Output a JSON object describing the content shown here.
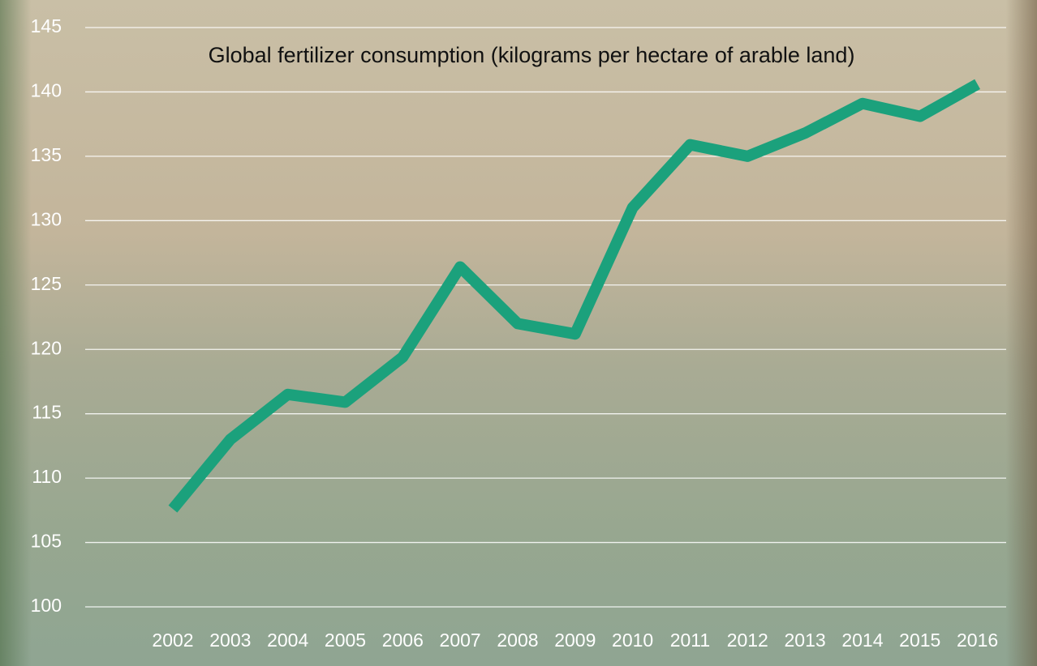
{
  "chart_data": {
    "type": "line",
    "title": "Global fertilizer consumption (kilograms per hectare of arable land)",
    "categories": [
      "2002",
      "2003",
      "2004",
      "2005",
      "2006",
      "2007",
      "2008",
      "2009",
      "2010",
      "2011",
      "2012",
      "2013",
      "2014",
      "2015",
      "2016"
    ],
    "values": [
      107.6,
      113.0,
      116.5,
      115.9,
      119.4,
      126.4,
      122.0,
      121.2,
      131.0,
      135.9,
      135.0,
      136.8,
      139.1,
      138.1,
      140.6
    ],
    "color": "#1ba17c",
    "ylim": [
      100,
      145
    ],
    "yticks": [
      100,
      105,
      110,
      115,
      120,
      125,
      130,
      135,
      140,
      145
    ],
    "grid": true
  }
}
